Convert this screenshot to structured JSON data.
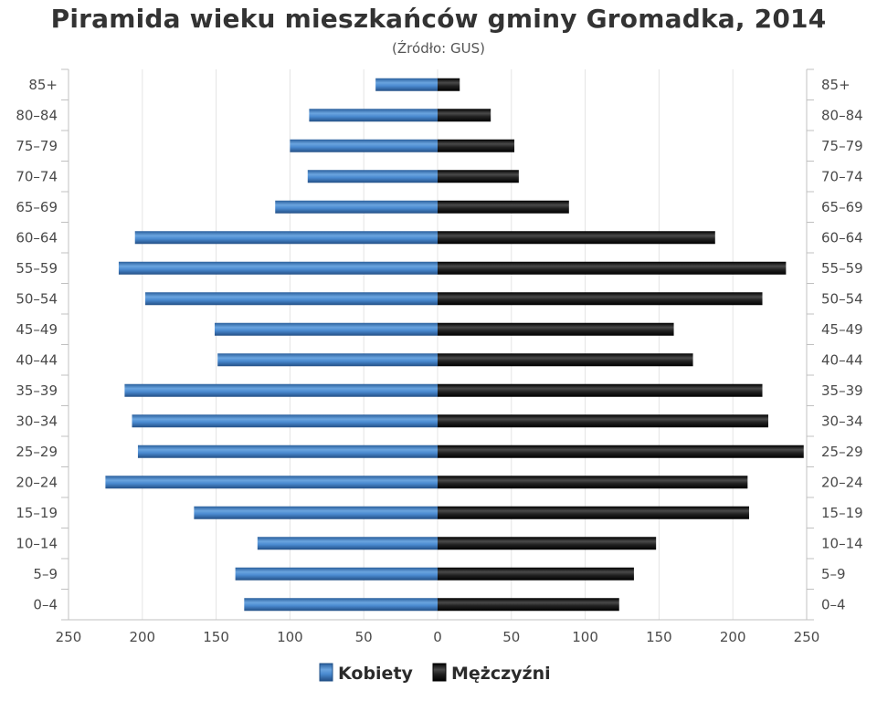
{
  "title": "Piramida wieku mieszkańców gminy Gromadka, 2014",
  "subtitle": "(Źródło: GUS)",
  "chart_data": {
    "type": "bar",
    "orientation": "horizontal-population-pyramid",
    "categories": [
      "85+",
      "80–84",
      "75–79",
      "70–74",
      "65–69",
      "60–64",
      "55–59",
      "50–54",
      "45–49",
      "40–44",
      "35–39",
      "30–34",
      "25–29",
      "20–24",
      "15–19",
      "10–14",
      "5–9",
      "0–4"
    ],
    "series": [
      {
        "name": "Kobiety",
        "color": "#3f7fc4",
        "side": "left",
        "values": [
          42,
          87,
          100,
          88,
          110,
          205,
          216,
          198,
          151,
          149,
          212,
          207,
          203,
          225,
          165,
          122,
          137,
          131
        ]
      },
      {
        "name": "Mężczyźni",
        "color": "#1c1c1c",
        "side": "right",
        "values": [
          15,
          36,
          52,
          55,
          89,
          188,
          236,
          220,
          160,
          173,
          220,
          224,
          248,
          210,
          211,
          148,
          133,
          123
        ]
      }
    ],
    "x_ticks": [
      250,
      200,
      150,
      100,
      50,
      0,
      50,
      100,
      150,
      200,
      250
    ],
    "xlim": [
      -250,
      250
    ],
    "grid": true,
    "legend_position": "bottom-center"
  }
}
